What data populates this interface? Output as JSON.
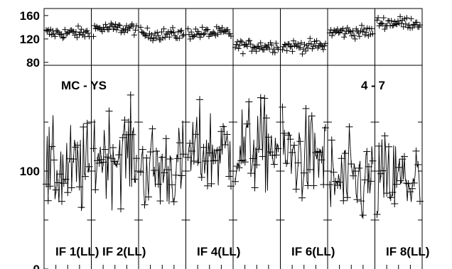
{
  "chart_data": {
    "type": "scatter",
    "title": "",
    "baseline_label": "MC - YS",
    "scan_label": "4 - 7",
    "top_axis": {
      "ticks": [
        80,
        120,
        160
      ],
      "ylim": [
        75,
        172
      ]
    },
    "main_axis": {
      "ticks": [
        0,
        100
      ],
      "ylim": [
        0,
        208
      ]
    },
    "if_labels": [
      "IF 1(LL)",
      "IF 2(LL)",
      "IF 4(LL)",
      "IF 6(LL)",
      "IF 8(LL)"
    ],
    "top_panel_means": [
      130,
      138,
      128,
      130,
      108,
      108,
      132,
      148
    ],
    "main_panel_means": [
      100,
      118,
      102,
      120,
      125,
      115,
      88,
      90
    ],
    "colors": {
      "data": "#000000",
      "axis": "#000000",
      "background": "#ffffff"
    }
  }
}
